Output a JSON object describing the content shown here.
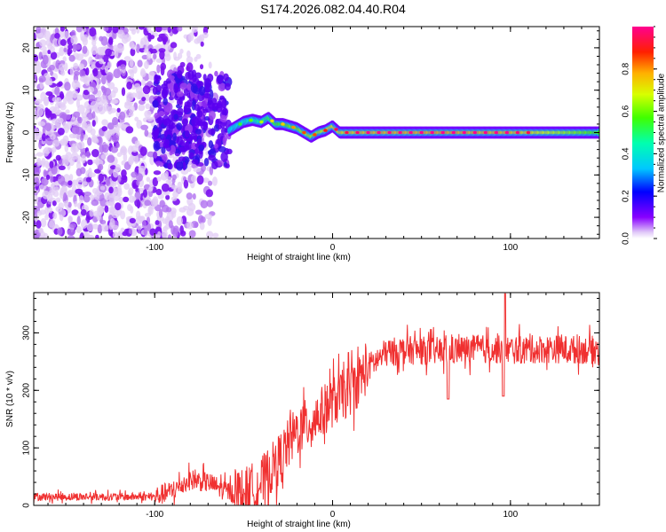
{
  "title": "S174.2026.082.04.40.R04",
  "chart_data": [
    {
      "type": "heatmap",
      "xlabel": "Height of straight line (km)",
      "ylabel": "Frequency (Hz)",
      "xlim": [
        -168,
        150
      ],
      "ylim": [
        -25,
        25
      ],
      "xticks": [
        -100,
        0,
        100
      ],
      "yticks": [
        -20,
        -10,
        0,
        10,
        20
      ],
      "colorbar": {
        "label": "Normalized spectral amplitude",
        "range": [
          0,
          1
        ],
        "ticks": [
          "0.0",
          "0.2",
          "0.4",
          "0.6",
          "0.8"
        ],
        "tick_values": [
          0.0,
          0.2,
          0.4,
          0.6,
          0.8
        ]
      },
      "ridge_track": {
        "x": [
          -58,
          -50,
          -45,
          -40,
          -36,
          -32,
          -28,
          -24,
          -20,
          -16,
          -12,
          -8,
          -4,
          0,
          4,
          8,
          20,
          60,
          100,
          150
        ],
        "freq": [
          0.5,
          2.5,
          3.0,
          2.5,
          3.5,
          2.0,
          2.0,
          1.5,
          1.0,
          0.0,
          -1.0,
          0.0,
          0.5,
          1.5,
          0.0,
          0.0,
          0.0,
          0.0,
          0.0,
          0.0
        ],
        "amplitude": [
          0.45,
          0.5,
          0.55,
          0.6,
          0.65,
          0.7,
          0.7,
          0.75,
          0.75,
          0.8,
          0.8,
          0.8,
          0.85,
          0.9,
          0.9,
          0.9,
          0.95,
          0.98,
          0.95,
          0.7
        ]
      }
    },
    {
      "type": "line",
      "xlabel": "Height of straight line (km)",
      "ylabel": "SNR (10 * v/v)",
      "xlim": [
        -168,
        150
      ],
      "ylim": [
        0,
        370
      ],
      "xticks": [
        -100,
        0,
        100
      ],
      "yticks": [
        0,
        100,
        200,
        300
      ],
      "series": [
        {
          "name": "SNR",
          "color": "#f03030",
          "x": [
            -168,
            -130,
            -100,
            -90,
            -80,
            -70,
            -60,
            -50,
            -40,
            -30,
            -20,
            -10,
            0,
            10,
            20,
            30,
            40,
            60,
            70,
            80,
            100,
            120,
            150
          ],
          "y": [
            15,
            15,
            15,
            25,
            45,
            40,
            25,
            20,
            40,
            80,
            130,
            150,
            180,
            200,
            240,
            265,
            270,
            268,
            270,
            272,
            270,
            272,
            270
          ]
        }
      ]
    }
  ]
}
